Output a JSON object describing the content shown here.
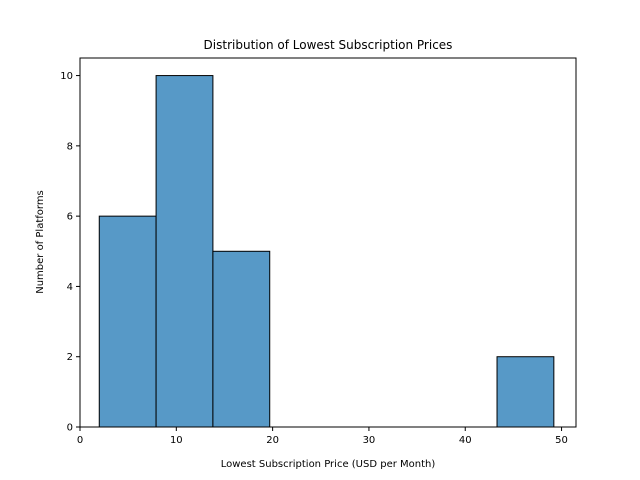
{
  "chart_data": {
    "type": "bar",
    "title": "Distribution of Lowest Subscription Prices",
    "xlabel": "Lowest Subscription Price (USD per Month)",
    "ylabel": "Number of Platforms",
    "xlim": [
      0,
      51.5
    ],
    "ylim": [
      0,
      10.5
    ],
    "xticks": [
      0,
      10,
      20,
      30,
      40,
      50
    ],
    "yticks": [
      0,
      2,
      4,
      6,
      8,
      10
    ],
    "bins": [
      {
        "x0": 2.0,
        "x1": 7.9,
        "count": 6
      },
      {
        "x0": 7.9,
        "x1": 13.8,
        "count": 10
      },
      {
        "x0": 13.8,
        "x1": 19.7,
        "count": 5
      },
      {
        "x0": 19.7,
        "x1": 25.6,
        "count": 0
      },
      {
        "x0": 25.6,
        "x1": 31.5,
        "count": 0
      },
      {
        "x0": 31.5,
        "x1": 37.4,
        "count": 0
      },
      {
        "x0": 37.4,
        "x1": 43.3,
        "count": 0
      },
      {
        "x0": 43.3,
        "x1": 49.2,
        "count": 2
      }
    ],
    "grid": false,
    "colors": {
      "bar_fill": "#5799c7",
      "bar_edge": "#000000"
    }
  }
}
